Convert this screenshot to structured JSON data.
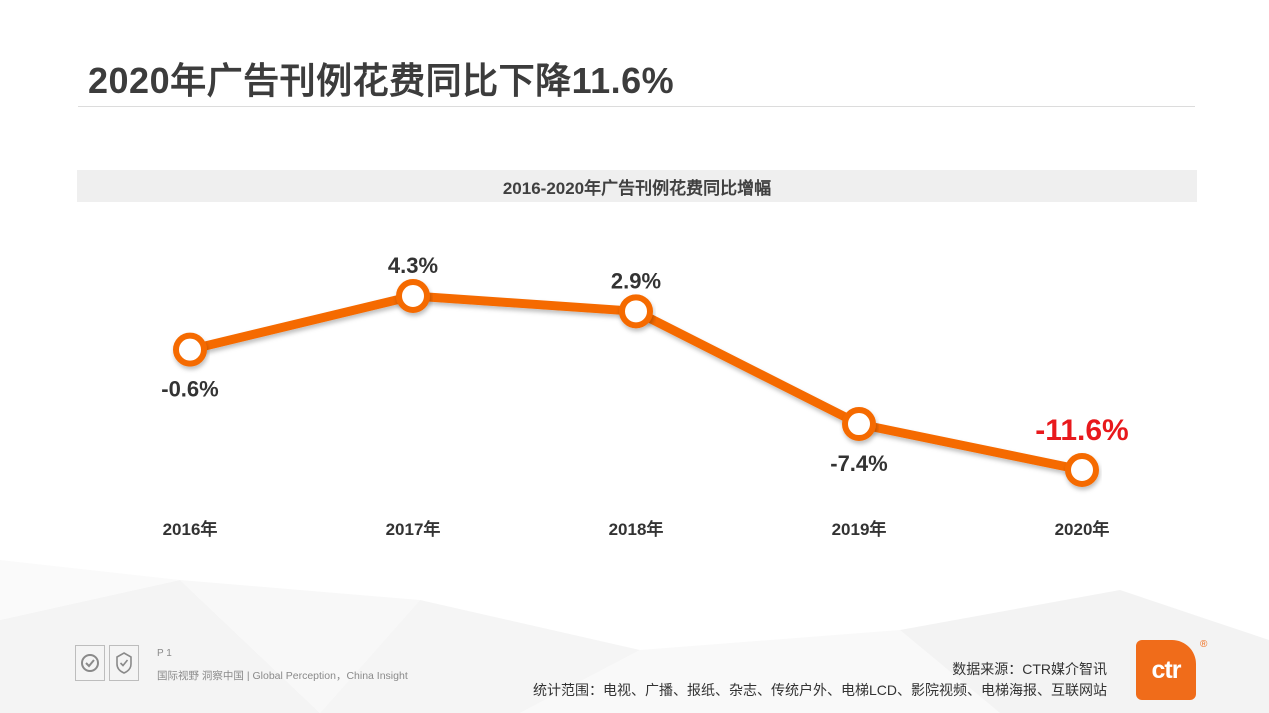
{
  "page": {
    "title": "2020年广告刊例花费同比下降11.6%"
  },
  "chart_data": {
    "type": "line",
    "title": "2016-2020年广告刊例花费同比增幅",
    "categories": [
      "2016年",
      "2017年",
      "2018年",
      "2019年",
      "2020年"
    ],
    "series": [
      {
        "values": [
          -0.6,
          4.3,
          2.9,
          -7.4,
          -11.6
        ]
      }
    ],
    "data_labels": [
      "-0.6%",
      "4.3%",
      "2.9%",
      "-7.4%",
      "-11.6%"
    ],
    "grid": false,
    "legend": "none",
    "colors": {
      "line": "#f56b00",
      "marker_fill": "#ffffff",
      "label": "#333333",
      "highlight_label": "#e8191c"
    }
  },
  "footer": {
    "page_label": "P 1",
    "slogan": "国际视野  洞察中国 |  Global Perception，China Insight",
    "source": "数据来源：CTR媒介智讯",
    "scope": "统计范围：电视、广播、报纸、杂志、传统户外、电梯LCD、影院视频、电梯海报、互联网站",
    "logo_text": "ctr",
    "logo_mark": "®",
    "logo_color": "#f06c1a"
  },
  "icons": [
    "certificate-badge-icon",
    "quality-seal-icon"
  ]
}
